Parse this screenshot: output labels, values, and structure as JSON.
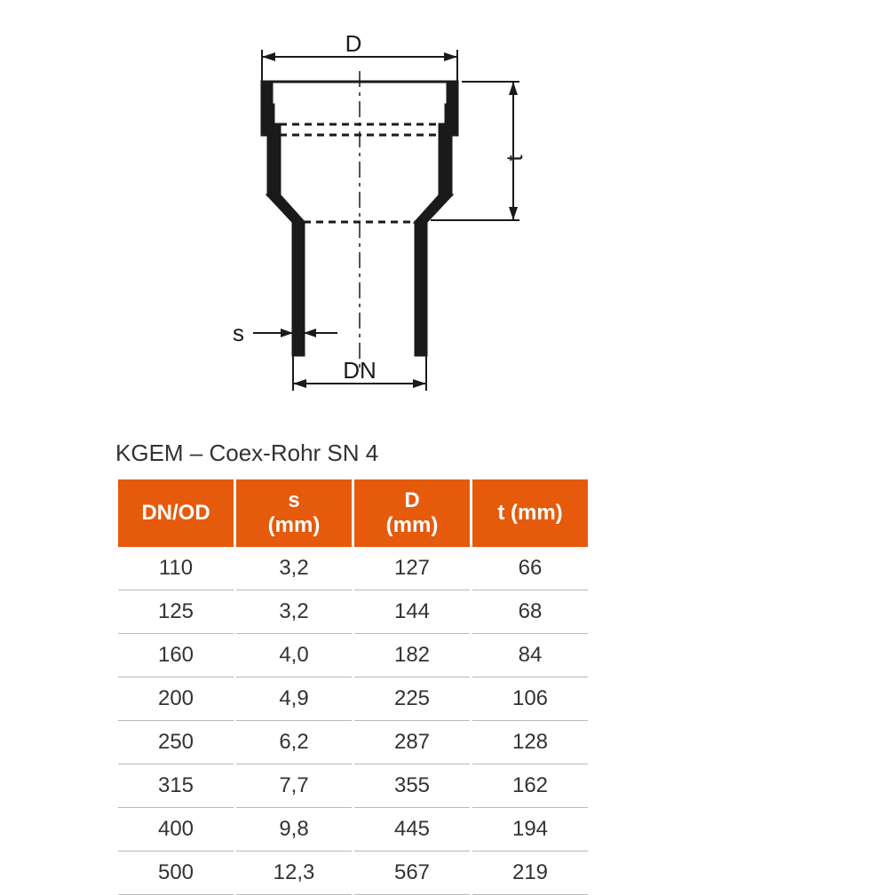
{
  "diagram": {
    "labels": {
      "D": "D",
      "t": "t",
      "s": "s",
      "DN": "DN"
    },
    "stroke": "#1a1a1a",
    "dash": "6,6",
    "line_width_thick": 3,
    "line_width_thin": 2,
    "font_size": 24
  },
  "table": {
    "title": "KGEM – Coex-Rohr SN 4",
    "header_bg": "#e65a0c",
    "header_fg": "#ffffff",
    "row_border": "#b8b8b8",
    "columns": [
      "DN/OD",
      "s (mm)",
      "D (mm)",
      "t (mm)"
    ],
    "rows": [
      [
        "110",
        "3,2",
        "127",
        "66"
      ],
      [
        "125",
        "3,2",
        "144",
        "68"
      ],
      [
        "160",
        "4,0",
        "182",
        "84"
      ],
      [
        "200",
        "4,9",
        "225",
        "106"
      ],
      [
        "250",
        "6,2",
        "287",
        "128"
      ],
      [
        "315",
        "7,7",
        "355",
        "162"
      ],
      [
        "400",
        "9,8",
        "445",
        "194"
      ],
      [
        "500",
        "12,3",
        "567",
        "219"
      ]
    ]
  }
}
